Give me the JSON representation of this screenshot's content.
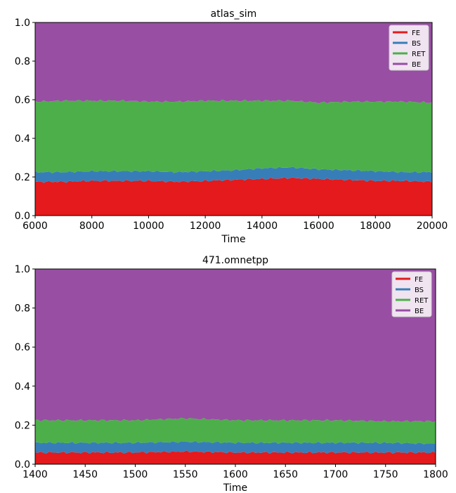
{
  "colors": {
    "FE": "#e41a1c",
    "BS": "#377eb8",
    "RET": "#4daf4a",
    "BE": "#984ea3"
  },
  "chart_data": [
    {
      "type": "area",
      "stacked": true,
      "title": "atlas_sim",
      "xlabel": "Time",
      "ylabel": "",
      "xlim": [
        6000,
        20000
      ],
      "ylim": [
        0,
        1
      ],
      "xticks": [
        6000,
        8000,
        10000,
        12000,
        14000,
        16000,
        18000,
        20000
      ],
      "yticks": [
        0.0,
        0.2,
        0.4,
        0.6,
        0.8,
        1.0
      ],
      "legend": {
        "position": "top-right",
        "entries": [
          "FE",
          "BS",
          "RET",
          "BE"
        ]
      },
      "x": [
        6000,
        7000,
        8000,
        9000,
        10000,
        11000,
        12000,
        13000,
        14000,
        15000,
        16000,
        17000,
        18000,
        19000,
        20000
      ],
      "series": [
        {
          "name": "FE",
          "values": [
            0.175,
            0.175,
            0.18,
            0.18,
            0.18,
            0.175,
            0.18,
            0.185,
            0.19,
            0.195,
            0.19,
            0.185,
            0.18,
            0.18,
            0.175
          ]
        },
        {
          "name": "BS",
          "values": [
            0.05,
            0.05,
            0.05,
            0.05,
            0.05,
            0.05,
            0.05,
            0.05,
            0.055,
            0.055,
            0.05,
            0.05,
            0.05,
            0.045,
            0.05
          ]
        },
        {
          "name": "RET",
          "values": [
            0.365,
            0.37,
            0.365,
            0.365,
            0.36,
            0.365,
            0.365,
            0.36,
            0.35,
            0.345,
            0.345,
            0.355,
            0.36,
            0.365,
            0.36
          ]
        },
        {
          "name": "BE",
          "values": [
            0.41,
            0.405,
            0.405,
            0.405,
            0.41,
            0.41,
            0.405,
            0.405,
            0.405,
            0.405,
            0.415,
            0.41,
            0.41,
            0.41,
            0.415
          ]
        }
      ]
    },
    {
      "type": "area",
      "stacked": true,
      "title": "471.omnetpp",
      "xlabel": "Time",
      "ylabel": "",
      "xlim": [
        1400,
        1800
      ],
      "ylim": [
        0,
        1
      ],
      "xticks": [
        1400,
        1450,
        1500,
        1550,
        1600,
        1650,
        1700,
        1750,
        1800
      ],
      "yticks": [
        0.0,
        0.2,
        0.4,
        0.6,
        0.8,
        1.0
      ],
      "legend": {
        "position": "top-right",
        "entries": [
          "FE",
          "BS",
          "RET",
          "BE"
        ]
      },
      "x": [
        1400,
        1450,
        1500,
        1550,
        1600,
        1650,
        1700,
        1750,
        1800
      ],
      "series": [
        {
          "name": "FE",
          "values": [
            0.06,
            0.06,
            0.06,
            0.065,
            0.06,
            0.06,
            0.06,
            0.06,
            0.06
          ]
        },
        {
          "name": "BS",
          "values": [
            0.05,
            0.05,
            0.05,
            0.05,
            0.05,
            0.05,
            0.05,
            0.05,
            0.045
          ]
        },
        {
          "name": "RET",
          "values": [
            0.115,
            0.115,
            0.115,
            0.12,
            0.115,
            0.115,
            0.115,
            0.11,
            0.115
          ]
        },
        {
          "name": "BE",
          "values": [
            0.775,
            0.775,
            0.775,
            0.765,
            0.775,
            0.775,
            0.775,
            0.78,
            0.78
          ]
        }
      ]
    }
  ]
}
